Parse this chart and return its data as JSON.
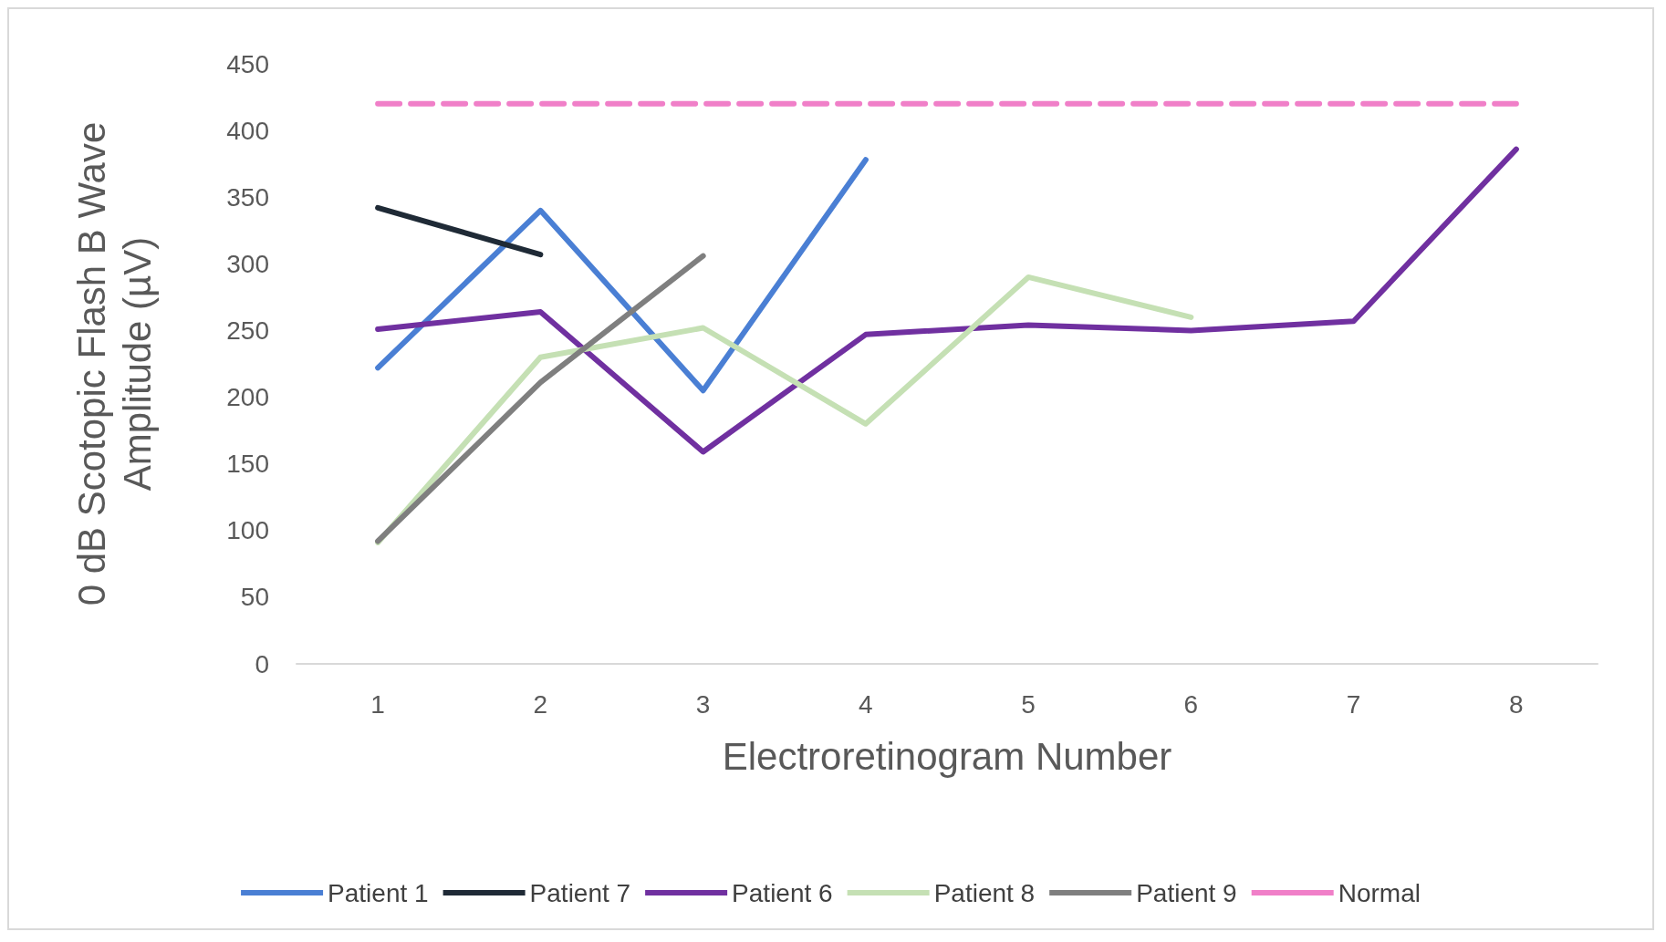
{
  "chart_data": {
    "type": "line",
    "xlabel": "Electroretinogram Number",
    "ylabel": "0 dB Scotopic Flash B Wave\nAmplitude (µV)",
    "categories": [
      "1",
      "2",
      "3",
      "4",
      "5",
      "6",
      "7",
      "8"
    ],
    "series": [
      {
        "name": "Patient 1",
        "color": "#4a7fd4",
        "values": [
          222,
          340,
          205,
          378,
          null,
          null,
          null,
          null
        ]
      },
      {
        "name": "Patient 7",
        "color": "#1f2a36",
        "values": [
          342,
          307,
          null,
          null,
          null,
          null,
          null,
          null
        ]
      },
      {
        "name": "Patient 6",
        "color": "#7030a0",
        "values": [
          251,
          264,
          159,
          247,
          254,
          250,
          257,
          386
        ]
      },
      {
        "name": "Patient 8",
        "color": "#c5e0b4",
        "values": [
          91,
          230,
          252,
          180,
          290,
          260,
          null,
          null
        ]
      },
      {
        "name": "Patient 9",
        "color": "#7f7f7f",
        "values": [
          92,
          211,
          306,
          null,
          null,
          null,
          null,
          null
        ]
      },
      {
        "name": "Normal",
        "color": "#f07fc8",
        "line_style": "dashed",
        "values": [
          420,
          420,
          420,
          420,
          420,
          420,
          420,
          420
        ]
      }
    ],
    "ylim": [
      0,
      450
    ],
    "yticks": [
      0,
      50,
      100,
      150,
      200,
      250,
      300,
      350,
      400,
      450
    ],
    "grid": false,
    "legend": "bottom",
    "marker": "none"
  }
}
